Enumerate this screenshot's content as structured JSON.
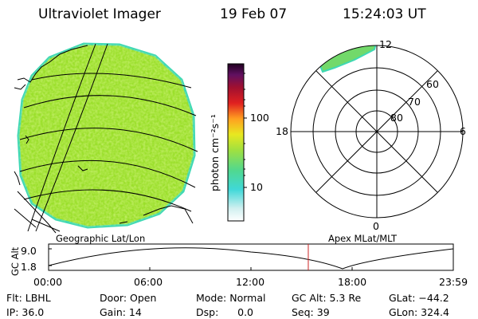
{
  "header": {
    "instrument": "Ultraviolet Imager",
    "date": "19 Feb 07",
    "time": "15:24:03 UT"
  },
  "colorbar": {
    "unit_label": "photon cm⁻²s⁻¹",
    "ticks": [
      "100",
      "10"
    ],
    "scale": "log"
  },
  "polar_plot": {
    "mlt_labels": {
      "top": "12",
      "left": "18",
      "right": "6",
      "bottom": "0"
    },
    "lat_labels": [
      "60",
      "70",
      "80"
    ]
  },
  "altitude_plot": {
    "left_caption": "Geographic Lat/Lon",
    "right_caption": "Apex MLat/MLT",
    "y_axis_label": "GC Alt",
    "y_ticks": [
      "9.0",
      "1.8"
    ],
    "x_ticks": [
      "00:00",
      "06:00",
      "12:00",
      "18:00",
      "23:59"
    ],
    "current_time_marker_hours": 15.4,
    "marker_color": "#cc2222"
  },
  "info": {
    "row1": {
      "filter": "Flt: LBHL",
      "door": "Door: Open",
      "mode": "Mode: Normal",
      "gc_alt": "GC Alt: 5.3 Re",
      "glat": "GLat: −44.2"
    },
    "row2": {
      "ip": "IP: 36.0",
      "gain": "Gain: 14",
      "dsp": "Dsp:      0.0",
      "seq": "Seq: 39",
      "glon": "GLon: 324.4"
    }
  },
  "colors": {
    "disk_green": "#9adf2a",
    "disk_edge": "#3ed8b4",
    "polar_patch": "#72d96a"
  }
}
